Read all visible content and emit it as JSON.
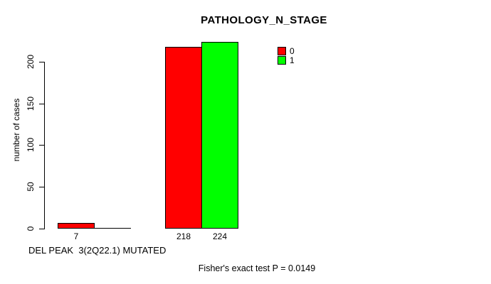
{
  "chart_data": {
    "type": "bar",
    "title": "PATHOLOGY_N_STAGE",
    "ylabel": "number of cases",
    "xlabel": "DEL PEAK  3(2Q22.1) MUTATED",
    "categories": [
      "",
      ""
    ],
    "series": [
      {
        "name": "0",
        "color": "#ff0000",
        "values": [
          7,
          218
        ]
      },
      {
        "name": "1",
        "color": "#00ff00",
        "values": [
          0,
          224
        ]
      }
    ],
    "bar_value_labels": [
      "7",
      "218",
      "224"
    ],
    "y_ticks": [
      0,
      50,
      100,
      150,
      200
    ],
    "ylim": [
      0,
      235
    ],
    "grid": false,
    "legend_position": "top-right",
    "annotation": "Fisher's exact test P = 0.0149"
  },
  "colors": {
    "axis": "#000000",
    "bar_border": "#000000",
    "background": "#ffffff",
    "text": "#000000"
  }
}
